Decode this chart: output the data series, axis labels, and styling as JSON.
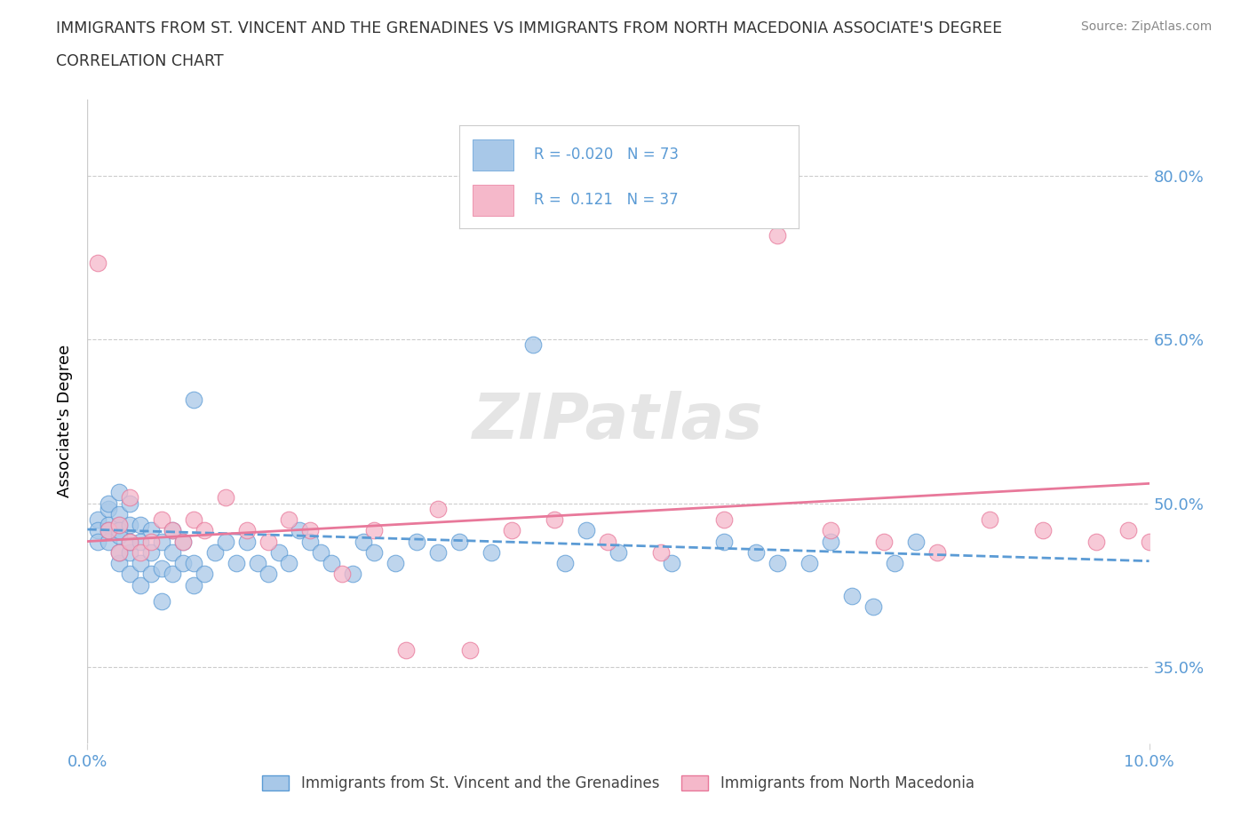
{
  "title_line1": "IMMIGRANTS FROM ST. VINCENT AND THE GRENADINES VS IMMIGRANTS FROM NORTH MACEDONIA ASSOCIATE'S DEGREE",
  "title_line2": "CORRELATION CHART",
  "source": "Source: ZipAtlas.com",
  "ylabel": "Associate's Degree",
  "xlim": [
    0.0,
    0.1
  ],
  "ylim": [
    0.28,
    0.87
  ],
  "ytick_vals": [
    0.35,
    0.5,
    0.65,
    0.8
  ],
  "ytick_labels": [
    "35.0%",
    "50.0%",
    "65.0%",
    "80.0%"
  ],
  "xtick_vals": [
    0.0,
    0.1
  ],
  "xtick_labels": [
    "0.0%",
    "10.0%"
  ],
  "legend_label1": "Immigrants from St. Vincent and the Grenadines",
  "legend_label2": "Immigrants from North Macedonia",
  "R1": -0.02,
  "N1": 73,
  "R2": 0.121,
  "N2": 37,
  "color_blue": "#a8c8e8",
  "color_pink": "#f5b8ca",
  "line_color_blue": "#5b9bd5",
  "line_color_pink": "#e8789a",
  "tick_color": "#5b9bd5",
  "watermark": "ZIPatlas",
  "blue_points_x": [
    0.001,
    0.001,
    0.001,
    0.002,
    0.002,
    0.002,
    0.002,
    0.002,
    0.003,
    0.003,
    0.003,
    0.003,
    0.003,
    0.003,
    0.003,
    0.004,
    0.004,
    0.004,
    0.004,
    0.004,
    0.005,
    0.005,
    0.005,
    0.005,
    0.006,
    0.006,
    0.006,
    0.007,
    0.007,
    0.007,
    0.008,
    0.008,
    0.008,
    0.009,
    0.009,
    0.01,
    0.01,
    0.01,
    0.011,
    0.012,
    0.013,
    0.014,
    0.015,
    0.016,
    0.017,
    0.018,
    0.019,
    0.02,
    0.021,
    0.022,
    0.023,
    0.025,
    0.026,
    0.027,
    0.029,
    0.031,
    0.033,
    0.035,
    0.038,
    0.042,
    0.045,
    0.047,
    0.05,
    0.055,
    0.06,
    0.063,
    0.065,
    0.068,
    0.07,
    0.072,
    0.074,
    0.076,
    0.078
  ],
  "blue_points_y": [
    0.485,
    0.475,
    0.465,
    0.495,
    0.48,
    0.465,
    0.475,
    0.5,
    0.445,
    0.455,
    0.47,
    0.48,
    0.49,
    0.51,
    0.475,
    0.435,
    0.455,
    0.465,
    0.48,
    0.5,
    0.425,
    0.445,
    0.465,
    0.48,
    0.435,
    0.455,
    0.475,
    0.41,
    0.44,
    0.465,
    0.435,
    0.455,
    0.475,
    0.445,
    0.465,
    0.425,
    0.445,
    0.595,
    0.435,
    0.455,
    0.465,
    0.445,
    0.465,
    0.445,
    0.435,
    0.455,
    0.445,
    0.475,
    0.465,
    0.455,
    0.445,
    0.435,
    0.465,
    0.455,
    0.445,
    0.465,
    0.455,
    0.465,
    0.455,
    0.645,
    0.445,
    0.475,
    0.455,
    0.445,
    0.465,
    0.455,
    0.445,
    0.445,
    0.465,
    0.415,
    0.405,
    0.445,
    0.465
  ],
  "pink_points_x": [
    0.001,
    0.002,
    0.003,
    0.003,
    0.004,
    0.004,
    0.005,
    0.006,
    0.007,
    0.008,
    0.009,
    0.01,
    0.011,
    0.013,
    0.015,
    0.017,
    0.019,
    0.021,
    0.024,
    0.027,
    0.03,
    0.033,
    0.036,
    0.04,
    0.044,
    0.049,
    0.054,
    0.06,
    0.065,
    0.07,
    0.075,
    0.08,
    0.085,
    0.09,
    0.095,
    0.098,
    0.1
  ],
  "pink_points_y": [
    0.72,
    0.475,
    0.455,
    0.48,
    0.465,
    0.505,
    0.455,
    0.465,
    0.485,
    0.475,
    0.465,
    0.485,
    0.475,
    0.505,
    0.475,
    0.465,
    0.485,
    0.475,
    0.435,
    0.475,
    0.365,
    0.495,
    0.365,
    0.475,
    0.485,
    0.465,
    0.455,
    0.485,
    0.745,
    0.475,
    0.465,
    0.455,
    0.485,
    0.475,
    0.465,
    0.475,
    0.465
  ],
  "blue_line_x0": 0.0,
  "blue_line_x1": 0.1,
  "blue_line_y0": 0.476,
  "blue_line_y1": 0.447,
  "pink_line_x0": 0.0,
  "pink_line_x1": 0.1,
  "pink_line_y0": 0.465,
  "pink_line_y1": 0.518
}
